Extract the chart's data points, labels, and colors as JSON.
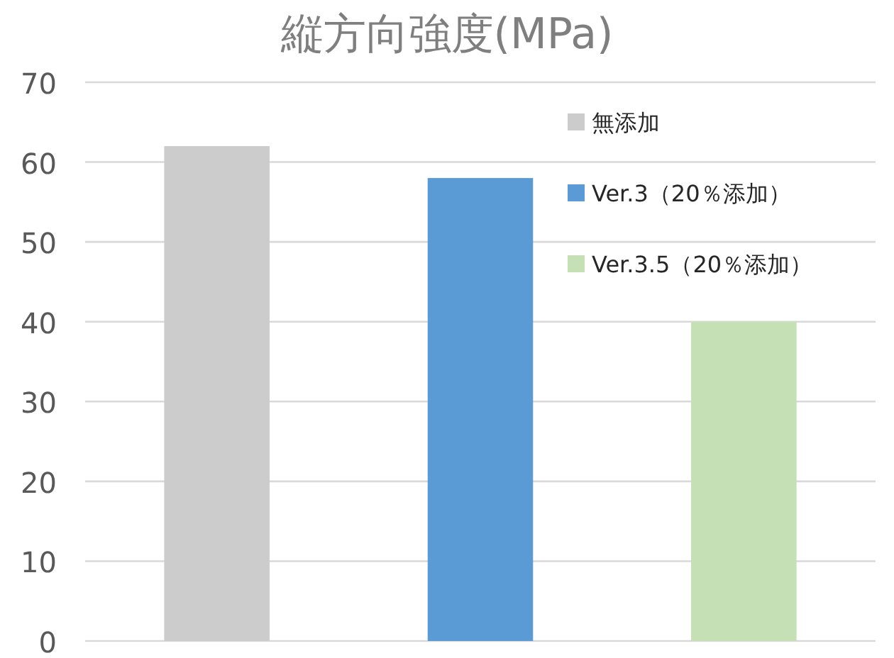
{
  "chart_data": {
    "type": "bar",
    "title": "縦方向強度(MPa)",
    "categories": [
      null,
      null,
      null
    ],
    "series": [
      {
        "name": "無添加",
        "color": "#cdcccd",
        "values": [
          62,
          null,
          null
        ]
      },
      {
        "name": "Ver.3（20％添加）",
        "color": "#5b9bd5",
        "values": [
          null,
          58,
          null
        ]
      },
      {
        "name": "Ver.3.5（20％添加）",
        "color": "#c5e0b4",
        "values": [
          null,
          null,
          40
        ]
      }
    ],
    "ylim": [
      0,
      70
    ],
    "yticks": [
      0,
      10,
      20,
      30,
      40,
      50,
      60,
      70
    ],
    "grid": "y",
    "legend": "top right",
    "tick_labels": "y"
  }
}
